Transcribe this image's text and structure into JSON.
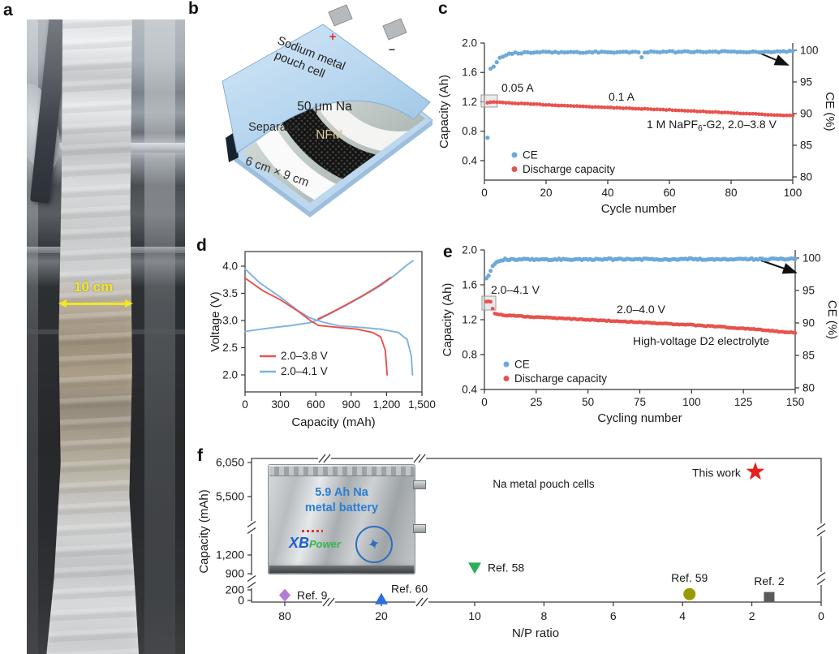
{
  "panels": {
    "a": "a",
    "b": "b",
    "c": "c",
    "d": "d",
    "e": "e",
    "f": "f"
  },
  "panel_a": {
    "scale_bar": "10 cm"
  },
  "panel_b": {
    "title_line1": "Sodium metal",
    "title_line2": "pouch cell",
    "plus": "+",
    "minus": "−",
    "na": "50 μm Na",
    "separator": "Separator",
    "nfm": "NFM",
    "size": "6 cm × 9 cm"
  },
  "chart_data": {
    "c": {
      "type": "scatter",
      "xlabel": "Cycle number",
      "ylabel_left": "Capacity (Ah)",
      "ylabel_right": "CE (%)",
      "xlim": [
        0,
        100
      ],
      "xticks": [
        0,
        20,
        40,
        60,
        80,
        100
      ],
      "yticks_left": [
        {
          "label": "2.0",
          "v": 2.0
        },
        {
          "label": "1.6",
          "v": 1.6
        },
        {
          "label": "1.2",
          "v": 1.2
        },
        {
          "label": "0.8",
          "v": 0.8
        },
        {
          "label": "0.4",
          "v": 0.4
        }
      ],
      "yticks_right": [
        {
          "label": "100",
          "v": 100
        },
        {
          "label": "95",
          "v": 95
        },
        {
          "label": "90",
          "v": 90
        },
        {
          "label": "85",
          "v": 85
        },
        {
          "label": "80",
          "v": 80
        }
      ],
      "ylim_left": [
        0.13,
        2.0
      ],
      "ylim_right": [
        80,
        101
      ],
      "legend": [
        "CE",
        "Discharge capacity"
      ],
      "annotations": [
        {
          "text": "0.05 A"
        },
        {
          "text": "0.1 A"
        },
        {
          "pre": "1 M NaPF",
          "sub": "6",
          "post": "-G2, 2.0–3.8 V"
        }
      ],
      "series": [
        {
          "name": "CE",
          "axis": "right",
          "unit": "%",
          "color": "#6da9d8",
          "anchors": [
            [
              1,
              86.3
            ],
            [
              2,
              97.1
            ],
            [
              3,
              97.4
            ],
            [
              5,
              98.9
            ],
            [
              8,
              99.5
            ],
            [
              15,
              99.7
            ],
            [
              50,
              99.75
            ],
            [
              100,
              99.8
            ]
          ],
          "outliers": [
            [
              51,
              98.9
            ]
          ],
          "noise": 0.12
        },
        {
          "name": "Discharge capacity",
          "axis": "left",
          "unit": "Ah",
          "color": "#e8524d",
          "anchors": [
            [
              1,
              1.19
            ],
            [
              3,
              1.2
            ],
            [
              10,
              1.18
            ],
            [
              30,
              1.14
            ],
            [
              60,
              1.09
            ],
            [
              100,
              1.01
            ]
          ],
          "noise": 0.004
        }
      ]
    },
    "d": {
      "type": "line",
      "xlabel": "Capacity (mAh)",
      "ylabel": "Voltage (V)",
      "xlim": [
        0,
        1500
      ],
      "ylim": [
        1.7,
        4.27
      ],
      "xticks": [
        {
          "label": "0",
          "v": 0
        },
        {
          "label": "300",
          "v": 300
        },
        {
          "label": "600",
          "v": 600
        },
        {
          "label": "900",
          "v": 900
        },
        {
          "label": "1,200",
          "v": 1200
        },
        {
          "label": "1,500",
          "v": 1500
        }
      ],
      "yticks": [
        {
          "label": "2.0",
          "v": 2.0
        },
        {
          "label": "2.5",
          "v": 2.5
        },
        {
          "label": "3.0",
          "v": 3.0
        },
        {
          "label": "3.5",
          "v": 3.5
        },
        {
          "label": "4.0",
          "v": 4.0
        }
      ],
      "legend": [
        {
          "label": "2.0–3.8 V",
          "color": "#e8524d"
        },
        {
          "label": "2.0–4.1 V",
          "color": "#7fb2e0"
        }
      ],
      "series": [
        {
          "name": "2.0–4.1 V charge",
          "color": "#7fb2e0",
          "points": [
            [
              0,
              2.8
            ],
            [
              200,
              2.86
            ],
            [
              400,
              2.91
            ],
            [
              550,
              2.96
            ],
            [
              620,
              3.01
            ],
            [
              700,
              3.1
            ],
            [
              850,
              3.27
            ],
            [
              1000,
              3.45
            ],
            [
              1150,
              3.64
            ],
            [
              1280,
              3.85
            ],
            [
              1360,
              4.0
            ],
            [
              1425,
              4.1
            ]
          ]
        },
        {
          "name": "2.0–4.1 V discharge",
          "color": "#7fb2e0",
          "points": [
            [
              0,
              3.95
            ],
            [
              120,
              3.7
            ],
            [
              300,
              3.43
            ],
            [
              450,
              3.18
            ],
            [
              550,
              3.05
            ],
            [
              660,
              2.97
            ],
            [
              800,
              2.9
            ],
            [
              1000,
              2.87
            ],
            [
              1150,
              2.84
            ],
            [
              1300,
              2.78
            ],
            [
              1375,
              2.65
            ],
            [
              1410,
              2.35
            ],
            [
              1420,
              2.0
            ]
          ]
        },
        {
          "name": "2.0–3.8 V charge",
          "color": "#e8524d",
          "points": [
            [
              620,
              3.03
            ],
            [
              700,
              3.11
            ],
            [
              850,
              3.28
            ],
            [
              1000,
              3.46
            ],
            [
              1120,
              3.62
            ],
            [
              1235,
              3.79
            ]
          ]
        },
        {
          "name": "2.0–3.8 V discharge",
          "color": "#e8524d",
          "points": [
            [
              0,
              3.78
            ],
            [
              150,
              3.55
            ],
            [
              300,
              3.38
            ],
            [
              450,
              3.17
            ],
            [
              560,
              2.99
            ],
            [
              620,
              2.91
            ],
            [
              800,
              2.87
            ],
            [
              950,
              2.84
            ],
            [
              1080,
              2.78
            ],
            [
              1150,
              2.7
            ],
            [
              1190,
              2.45
            ],
            [
              1205,
              2.0
            ]
          ]
        }
      ]
    },
    "e": {
      "type": "scatter",
      "xlabel": "Cycling number",
      "ylabel_left": "Capacity (Ah)",
      "ylabel_right": "CE (%)",
      "xlim": [
        0,
        150
      ],
      "xticks": [
        0,
        25,
        50,
        75,
        100,
        125,
        150
      ],
      "yticks_left": [
        {
          "label": "2.0",
          "v": 2.0
        },
        {
          "label": "1.6",
          "v": 1.6
        },
        {
          "label": "1.2",
          "v": 1.2
        },
        {
          "label": "0.8",
          "v": 0.8
        },
        {
          "label": "0.4",
          "v": 0.4
        }
      ],
      "yticks_right": [
        {
          "label": "100",
          "v": 100
        },
        {
          "label": "95",
          "v": 95
        },
        {
          "label": "90",
          "v": 90
        },
        {
          "label": "85",
          "v": 85
        },
        {
          "label": "80",
          "v": 80
        }
      ],
      "legend": [
        "CE",
        "Discharge capacity"
      ],
      "annotations": [
        {
          "text": "2.0–4.1 V"
        },
        {
          "text": "2.0–4.0 V"
        },
        {
          "text": "High-voltage D2 electrolyte"
        }
      ],
      "series": [
        {
          "name": "CE",
          "axis": "right",
          "unit": "%",
          "color": "#6da9d8",
          "anchors": [
            [
              1,
              97.0
            ],
            [
              2,
              97.3
            ],
            [
              3,
              98.0
            ],
            [
              4,
              98.8
            ],
            [
              6,
              99.5
            ],
            [
              10,
              99.8
            ],
            [
              150,
              99.85
            ]
          ],
          "noise": 0.12
        },
        {
          "name": "Discharge capacity",
          "axis": "left",
          "unit": "Ah",
          "color": "#e8524d",
          "anchors": [
            [
              1,
              1.41
            ],
            [
              3,
              1.41
            ],
            [
              4,
              1.33
            ],
            [
              5,
              1.27
            ],
            [
              10,
              1.25
            ],
            [
              25,
              1.23
            ],
            [
              50,
              1.2
            ],
            [
              75,
              1.17
            ],
            [
              100,
              1.14
            ],
            [
              125,
              1.1
            ],
            [
              150,
              1.05
            ]
          ],
          "noise": 0.005
        }
      ]
    },
    "f": {
      "type": "scatter",
      "xlabel": "N/P ratio",
      "ylabel": "Capacity (mAh)",
      "note": "Na metal pouch cells",
      "xticks": [
        80,
        20,
        10,
        8,
        6,
        4,
        2,
        0
      ],
      "yticks": [
        {
          "label": "0",
          "v": 0
        },
        {
          "label": "200",
          "v": 200
        },
        {
          "label": "900",
          "v": 900
        },
        {
          "label": "1,200",
          "v": 1200
        },
        {
          "label": "5,500",
          "v": 5500
        },
        {
          "label": "6,050",
          "v": 6050
        }
      ],
      "axis_breaks": {
        "x": [
          [
            80,
            20
          ],
          [
            20,
            10
          ]
        ],
        "y": [
          [
            200,
            900
          ],
          [
            1200,
            5500
          ]
        ]
      },
      "points": [
        {
          "label": "Ref. 9",
          "marker": "diamond",
          "color": "#b57bd5",
          "np": 80,
          "capacity_mah": 100
        },
        {
          "label": "Ref. 60",
          "marker": "triangle-up",
          "color": "#2e6ede",
          "np": 20,
          "capacity_mah": 20
        },
        {
          "label": "Ref. 58",
          "marker": "triangle-down",
          "color": "#2fae5a",
          "np": 10,
          "capacity_mah": 1000
        },
        {
          "label": "Ref. 59",
          "marker": "circle",
          "color": "#9a9a00",
          "np": 3.8,
          "capacity_mah": 120
        },
        {
          "label": "Ref. 2",
          "marker": "square",
          "color": "#5a5a5a",
          "np": 1.5,
          "capacity_mah": 60
        },
        {
          "label": "This work",
          "marker": "star",
          "color": "#e8201a",
          "np": 1.9,
          "capacity_mah": 5900
        }
      ],
      "inset": {
        "line1": "5.9 Ah Na",
        "line2": "metal battery",
        "logo_main": "XB",
        "logo_sub": "Power"
      }
    }
  }
}
